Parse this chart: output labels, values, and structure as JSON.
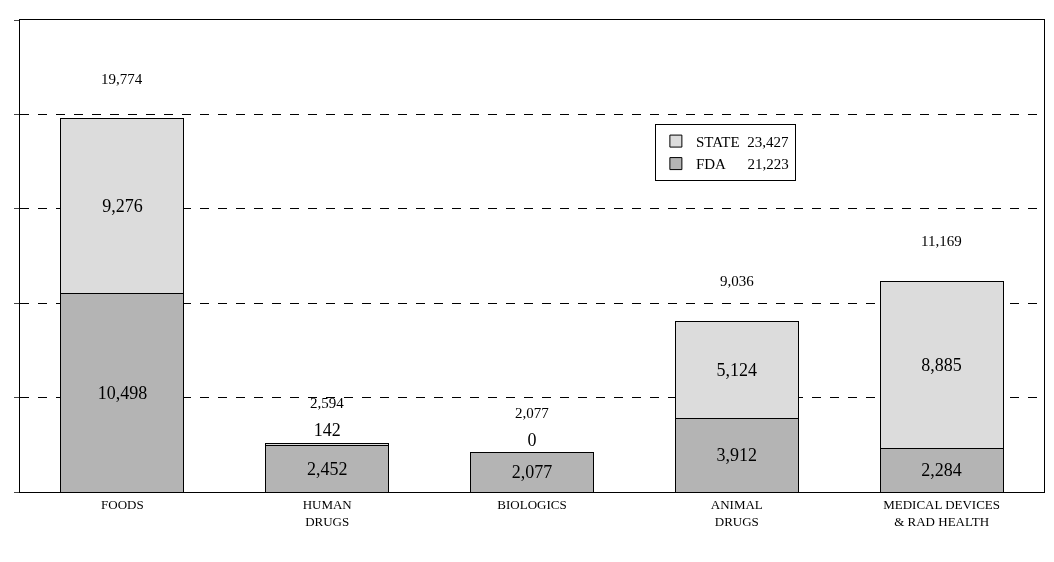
{
  "chart_data": {
    "type": "bar",
    "stacked": true,
    "categories": [
      "FOODS",
      "HUMAN\nDRUGS",
      "BIOLOGICS",
      "ANIMAL\nDRUGS",
      "MEDICAL DEVICES\n& RAD HEALTH"
    ],
    "series": [
      {
        "name": "FDA      21,223",
        "color": "#b4b4b4",
        "values": [
          10498,
          2452,
          2077,
          3912,
          2284
        ],
        "value_labels": [
          "10,498",
          "2,452",
          "2,077",
          "3,912",
          "2,284"
        ]
      },
      {
        "name": "STATE  23,427",
        "color": "#dcdcdc",
        "values": [
          9276,
          142,
          0,
          5124,
          8885
        ],
        "value_labels": [
          "9,276",
          "142",
          "0",
          "5,124",
          "8,885"
        ]
      }
    ],
    "totals": [
      "19,774",
      "2,594",
      "2,077",
      "9,036",
      "11,169"
    ],
    "ylim": [
      0,
      25000
    ],
    "yticks": [
      {
        "value": 0,
        "label": null
      },
      {
        "value": 5000,
        "label": null
      },
      {
        "value": 10000,
        "label": null
      },
      {
        "value": 15000,
        "label": null
      },
      {
        "value": 20000,
        "label": null
      },
      {
        "value": 25000,
        "label": null
      }
    ],
    "grid": "y",
    "legend": "top right",
    "tick_labels": "x"
  }
}
